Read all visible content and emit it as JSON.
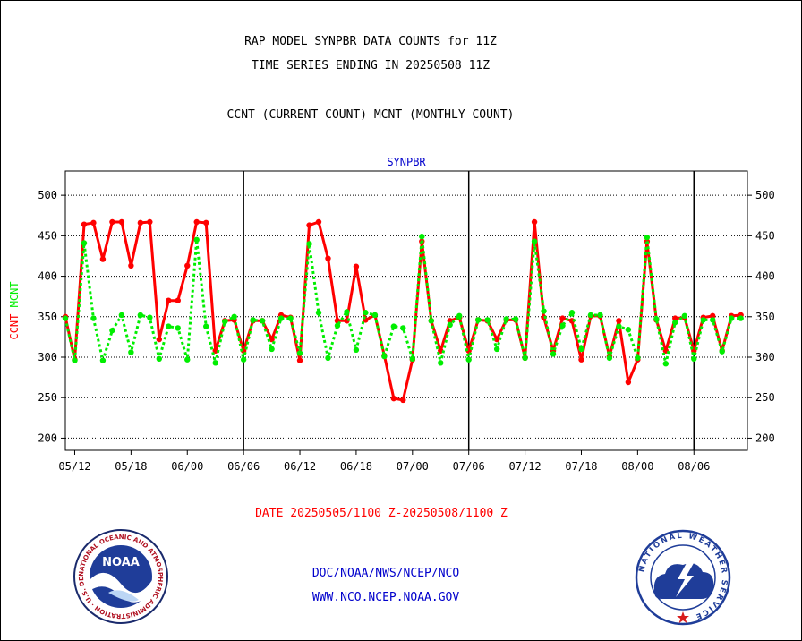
{
  "header": {
    "title": "RAP MODEL SYNPBR DATA COUNTS for 11Z",
    "subtitle": "TIME SERIES ENDING IN 20250508 11Z",
    "description": "CCNT (CURRENT COUNT) MCNT (MONTHLY COUNT)"
  },
  "footer": {
    "date_range": "DATE 20250505/1100 Z-20250508/1100 Z",
    "org_line": "DOC/NOAA/NWS/NCEP/NCO",
    "url_line": "WWW.NCO.NCEP.NOAA.GOV"
  },
  "logos": {
    "noaa_text": "NOAA",
    "noaa_ring_text": "NATIONAL OCEANIC AND ATMOSPHERIC ADMINISTRATION · U.S. DEPARTMENT OF COMMERCE ·",
    "nws_ring_text": "NATIONAL WEATHER SERVICE"
  },
  "colors": {
    "ccnt": "#ff0000",
    "mcnt": "#00ee00",
    "axis": "#000000",
    "panel_title": "#0000cc",
    "footer_text": "#0000cc",
    "date_text": "#ff0000"
  },
  "chart_data": {
    "type": "line",
    "title": "SYNPBR",
    "ylabel_left_parts": [
      {
        "text": "CCNT",
        "series": "CCNT"
      },
      {
        "text": "MCNT",
        "series": "MCNT"
      }
    ],
    "xlabel": "",
    "ylim": [
      185,
      530
    ],
    "y_ticks": [
      200,
      250,
      300,
      350,
      400,
      450,
      500
    ],
    "y_right_ticks": true,
    "grid": "horizontal dotted",
    "x_tick_labels": [
      "05/12",
      "05/18",
      "06/00",
      "06/06",
      "06/12",
      "06/18",
      "07/00",
      "07/06",
      "07/12",
      "07/18",
      "08/00",
      "08/06"
    ],
    "x_tick_positions": [
      2,
      8,
      14,
      20,
      26,
      32,
      38,
      44,
      50,
      56,
      62,
      68
    ],
    "xlim": [
      1,
      73.7
    ],
    "day_boundaries": [
      20,
      44,
      68
    ],
    "series": [
      {
        "name": "CCNT",
        "color": "#ff0000",
        "style": "solid",
        "values": [
          [
            1,
            350
          ],
          [
            2,
            297
          ],
          [
            3,
            464
          ],
          [
            4,
            466
          ],
          [
            5,
            421
          ],
          [
            6,
            467
          ],
          [
            7,
            467
          ],
          [
            8,
            413
          ],
          [
            9,
            466
          ],
          [
            10,
            467
          ],
          [
            11,
            322
          ],
          [
            12,
            370
          ],
          [
            13,
            370
          ],
          [
            14,
            413
          ],
          [
            15,
            467
          ],
          [
            16,
            466
          ],
          [
            17,
            308
          ],
          [
            18,
            345
          ],
          [
            19,
            346
          ],
          [
            20,
            308
          ],
          [
            21,
            345
          ],
          [
            22,
            345
          ],
          [
            23,
            322
          ],
          [
            24,
            352
          ],
          [
            25,
            349
          ],
          [
            26,
            296
          ],
          [
            27,
            463
          ],
          [
            28,
            467
          ],
          [
            29,
            422
          ],
          [
            30,
            345
          ],
          [
            31,
            345
          ],
          [
            32,
            412
          ],
          [
            33,
            346
          ],
          [
            34,
            352
          ],
          [
            35,
            302
          ],
          [
            36,
            249
          ],
          [
            37,
            247
          ],
          [
            38,
            297
          ],
          [
            39,
            443
          ],
          [
            40,
            345
          ],
          [
            41,
            308
          ],
          [
            42,
            345
          ],
          [
            43,
            349
          ],
          [
            44,
            308
          ],
          [
            45,
            346
          ],
          [
            46,
            345
          ],
          [
            47,
            322
          ],
          [
            48,
            346
          ],
          [
            49,
            346
          ],
          [
            50,
            299
          ],
          [
            51,
            467
          ],
          [
            52,
            349
          ],
          [
            53,
            308
          ],
          [
            54,
            348
          ],
          [
            55,
            345
          ],
          [
            56,
            297
          ],
          [
            57,
            351
          ],
          [
            58,
            351
          ],
          [
            59,
            301
          ],
          [
            60,
            345
          ],
          [
            61,
            269
          ],
          [
            62,
            297
          ],
          [
            63,
            443
          ],
          [
            64,
            346
          ],
          [
            65,
            308
          ],
          [
            66,
            348
          ],
          [
            67,
            349
          ],
          [
            68,
            308
          ],
          [
            69,
            349
          ],
          [
            70,
            351
          ],
          [
            71,
            308
          ],
          [
            72,
            351
          ],
          [
            73,
            352
          ]
        ]
      },
      {
        "name": "MCNT",
        "color": "#00ee00",
        "style": "dotted",
        "values": [
          [
            1,
            348
          ],
          [
            2,
            296
          ],
          [
            3,
            441
          ],
          [
            4,
            348
          ],
          [
            5,
            296
          ],
          [
            6,
            333
          ],
          [
            7,
            352
          ],
          [
            8,
            306
          ],
          [
            9,
            352
          ],
          [
            10,
            349
          ],
          [
            11,
            298
          ],
          [
            12,
            338
          ],
          [
            13,
            336
          ],
          [
            14,
            297
          ],
          [
            15,
            445
          ],
          [
            16,
            338
          ],
          [
            17,
            293
          ],
          [
            18,
            344
          ],
          [
            19,
            350
          ],
          [
            20,
            297
          ],
          [
            21,
            346
          ],
          [
            22,
            345
          ],
          [
            23,
            310
          ],
          [
            24,
            348
          ],
          [
            25,
            348
          ],
          [
            26,
            305
          ],
          [
            27,
            440
          ],
          [
            28,
            355
          ],
          [
            29,
            299
          ],
          [
            30,
            339
          ],
          [
            31,
            356
          ],
          [
            32,
            309
          ],
          [
            33,
            355
          ],
          [
            34,
            352
          ],
          [
            35,
            301
          ],
          [
            36,
            338
          ],
          [
            37,
            336
          ],
          [
            38,
            298
          ],
          [
            39,
            449
          ],
          [
            40,
            345
          ],
          [
            41,
            293
          ],
          [
            42,
            340
          ],
          [
            43,
            351
          ],
          [
            44,
            297
          ],
          [
            45,
            346
          ],
          [
            46,
            346
          ],
          [
            47,
            310
          ],
          [
            48,
            347
          ],
          [
            49,
            347
          ],
          [
            50,
            299
          ],
          [
            51,
            443
          ],
          [
            52,
            357
          ],
          [
            53,
            304
          ],
          [
            54,
            339
          ],
          [
            55,
            355
          ],
          [
            56,
            310
          ],
          [
            57,
            352
          ],
          [
            58,
            352
          ],
          [
            59,
            299
          ],
          [
            60,
            338
          ],
          [
            61,
            334
          ],
          [
            62,
            299
          ],
          [
            63,
            448
          ],
          [
            64,
            347
          ],
          [
            65,
            292
          ],
          [
            66,
            343
          ],
          [
            67,
            351
          ],
          [
            68,
            298
          ],
          [
            69,
            346
          ],
          [
            70,
            346
          ],
          [
            71,
            307
          ],
          [
            72,
            348
          ],
          [
            73,
            348
          ]
        ]
      }
    ]
  }
}
